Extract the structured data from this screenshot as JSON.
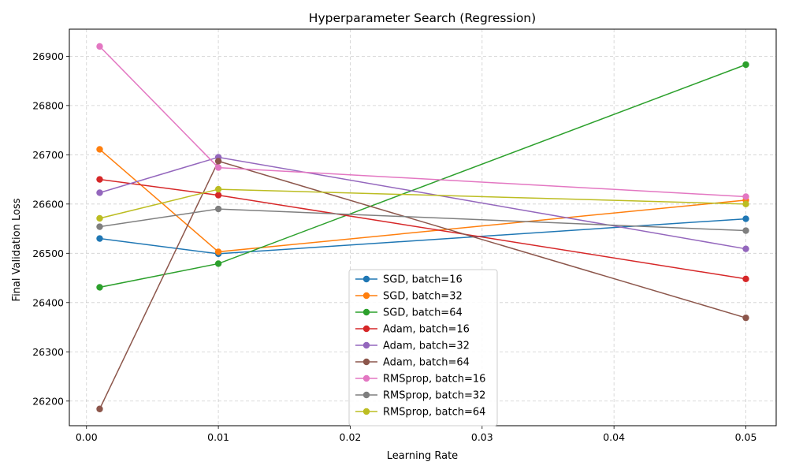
{
  "chart_data": {
    "type": "line",
    "title": "Hyperparameter Search (Regression)",
    "xlabel": "Learning Rate",
    "ylabel": "Final Validation Loss",
    "xlim": [
      -0.0013,
      0.0523
    ],
    "ylim": [
      26150,
      26955
    ],
    "xticks": [
      0.0,
      0.01,
      0.02,
      0.03,
      0.04,
      0.05
    ],
    "xtick_labels": [
      "0.00",
      "0.01",
      "0.02",
      "0.03",
      "0.04",
      "0.05"
    ],
    "yticks": [
      26200,
      26300,
      26400,
      26500,
      26600,
      26700,
      26800,
      26900
    ],
    "ytick_labels": [
      "26200",
      "26300",
      "26400",
      "26500",
      "26600",
      "26700",
      "26800",
      "26900"
    ],
    "grid": true,
    "legend_position": "lower-center",
    "x": [
      0.001,
      0.01,
      0.05
    ],
    "series": [
      {
        "name": "SGD, batch=16",
        "color": "#1f77b4",
        "values": [
          26530,
          26499,
          26570
        ]
      },
      {
        "name": "SGD, batch=32",
        "color": "#ff7f0e",
        "values": [
          26711,
          26503,
          26608
        ]
      },
      {
        "name": "SGD, batch=64",
        "color": "#2ca02c",
        "values": [
          26431,
          26479,
          26883
        ]
      },
      {
        "name": "Adam, batch=16",
        "color": "#d62728",
        "values": [
          26650,
          26618,
          26448
        ]
      },
      {
        "name": "Adam, batch=32",
        "color": "#9467bd",
        "values": [
          26623,
          26695,
          26509
        ]
      },
      {
        "name": "Adam, batch=64",
        "color": "#8c564b",
        "values": [
          26184,
          26687,
          26369
        ]
      },
      {
        "name": "RMSprop, batch=16",
        "color": "#e377c2",
        "values": [
          26920,
          26674,
          26615
        ]
      },
      {
        "name": "RMSprop, batch=32",
        "color": "#7f7f7f",
        "values": [
          26554,
          26590,
          26546
        ]
      },
      {
        "name": "RMSprop, batch=64",
        "color": "#bcbd22",
        "values": [
          26571,
          26630,
          26600
        ]
      }
    ]
  }
}
